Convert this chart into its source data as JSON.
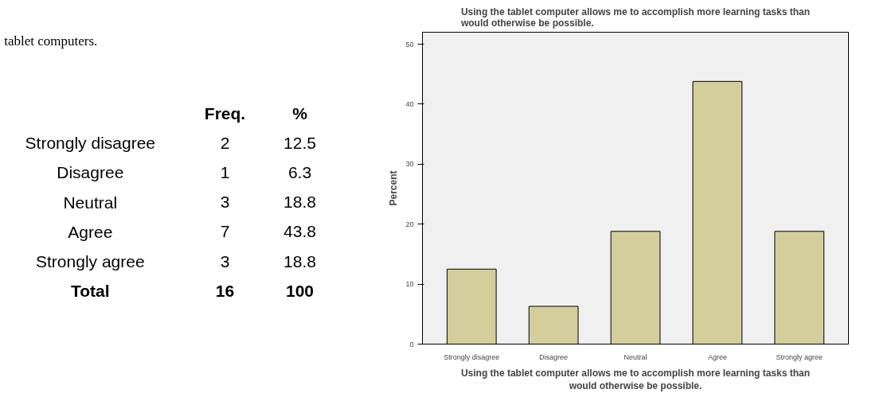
{
  "chart_data": [
    {
      "type": "other",
      "annotations": [
        "tablet computers."
      ],
      "categories": [
        "Strongly disagree",
        "Disagree",
        "Neutral",
        "Agree",
        "Strongly agree",
        "Total"
      ],
      "series": [
        {
          "name": "Freq.",
          "values": [
            2,
            1,
            3,
            7,
            3,
            16
          ]
        },
        {
          "name": "%",
          "values": [
            12.5,
            6.3,
            18.8,
            43.8,
            18.8,
            100
          ]
        }
      ],
      "data_labels": true
    },
    {
      "type": "bar",
      "title": "Using the tablet computer allows me to accomplish more learning tasks than would otherwise be possible.",
      "xlabel": "Using the tablet computer allows me to accomplish more learning tasks than would otherwise be possible.",
      "ylabel": "Percent",
      "categories": [
        "Strongly disagree",
        "Disagree",
        "Neutral",
        "Agree",
        "Strongly agree"
      ],
      "values": [
        12.5,
        6.3,
        18.8,
        43.8,
        18.8
      ],
      "color": "#d3ce9c",
      "ylim": [
        0,
        52
      ],
      "yticks": [
        0,
        10,
        20,
        30,
        40,
        50
      ],
      "grid": false
    }
  ]
}
